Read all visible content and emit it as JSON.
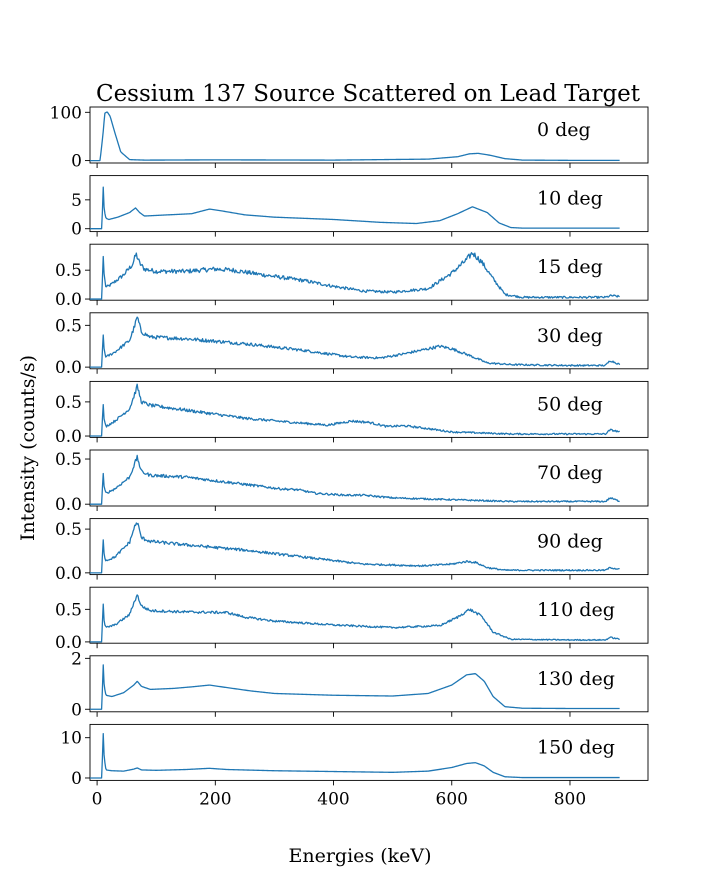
{
  "chart_data": {
    "type": "line",
    "title": "Cessium 137 Source Scattered on Lead Target",
    "xlabel": "Energies (keV)",
    "ylabel": "Intensity (counts/s)",
    "xlim": [
      -12,
      932
    ],
    "x_ticks": [
      "0",
      "200",
      "400",
      "600",
      "800"
    ],
    "x_tick_values": [
      0,
      200,
      400,
      600,
      800
    ],
    "line_color": "#1f77b4",
    "grid": false,
    "legend": "none",
    "panels": [
      {
        "label": "0 deg",
        "ylim": [
          -5,
          111
        ],
        "y_ticks": [
          "0",
          "100"
        ],
        "y_tick_values": [
          0,
          100
        ],
        "x": [
          0,
          5,
          10,
          13,
          17,
          22,
          30,
          40,
          55,
          80,
          200,
          400,
          560,
          610,
          630,
          645,
          665,
          690,
          720,
          800,
          885
        ],
        "values": [
          0,
          0,
          55,
          98,
          101,
          92,
          58,
          18,
          2,
          1,
          1.5,
          1,
          3,
          8,
          14,
          15,
          11,
          4,
          1,
          0.5,
          0.4
        ]
      },
      {
        "label": "10 deg",
        "ylim": [
          -0.5,
          9.2
        ],
        "y_ticks": [
          "0",
          "5"
        ],
        "y_tick_values": [
          0,
          5
        ],
        "x": [
          0,
          8,
          9,
          10,
          12,
          15,
          20,
          35,
          55,
          65,
          72,
          80,
          120,
          160,
          190,
          210,
          250,
          300,
          400,
          480,
          540,
          580,
          610,
          635,
          660,
          680,
          700,
          720,
          800,
          885
        ],
        "values": [
          0,
          0,
          3,
          8.2,
          3.2,
          1.8,
          1.6,
          2,
          2.8,
          3.6,
          2.8,
          2.2,
          2.4,
          2.6,
          3.4,
          3.1,
          2.4,
          2,
          1.6,
          1.1,
          0.9,
          1.4,
          2.6,
          3.8,
          2.8,
          1,
          0.2,
          0.1,
          0.1,
          0.1
        ]
      },
      {
        "label": "15 deg",
        "ylim": [
          -0.02,
          0.95
        ],
        "y_ticks": [
          "0.0",
          "0.5"
        ],
        "y_tick_values": [
          0,
          0.5
        ],
        "noise": 0.045,
        "x": [
          0,
          8,
          9,
          10,
          12,
          15,
          25,
          45,
          60,
          66,
          72,
          80,
          100,
          150,
          200,
          230,
          280,
          350,
          400,
          450,
          500,
          560,
          600,
          625,
          635,
          650,
          670,
          690,
          720,
          800,
          860,
          870,
          885
        ],
        "values": [
          0,
          0,
          0.35,
          0.82,
          0.4,
          0.2,
          0.26,
          0.42,
          0.6,
          0.78,
          0.62,
          0.52,
          0.48,
          0.48,
          0.52,
          0.5,
          0.42,
          0.32,
          0.22,
          0.14,
          0.12,
          0.18,
          0.45,
          0.68,
          0.8,
          0.65,
          0.35,
          0.08,
          0.03,
          0.03,
          0.03,
          0.06,
          0.04
        ]
      },
      {
        "label": "30 deg",
        "ylim": [
          -0.02,
          0.65
        ],
        "y_ticks": [
          "0.0",
          "0.5"
        ],
        "y_tick_values": [
          0,
          0.5
        ],
        "noise": 0.025,
        "x": [
          0,
          8,
          9,
          10,
          12,
          15,
          30,
          55,
          63,
          68,
          75,
          90,
          150,
          250,
          350,
          430,
          480,
          520,
          560,
          580,
          600,
          630,
          660,
          700,
          800,
          860,
          868,
          885
        ],
        "values": [
          0,
          0,
          0.2,
          0.43,
          0.2,
          0.12,
          0.18,
          0.32,
          0.48,
          0.6,
          0.42,
          0.36,
          0.34,
          0.28,
          0.2,
          0.12,
          0.11,
          0.16,
          0.22,
          0.25,
          0.22,
          0.14,
          0.05,
          0.03,
          0.02,
          0.02,
          0.08,
          0.03
        ]
      },
      {
        "label": "50 deg",
        "ylim": [
          -0.02,
          0.8
        ],
        "y_ticks": [
          "0.0",
          "0.5"
        ],
        "y_tick_values": [
          0,
          0.5
        ],
        "noise": 0.028,
        "x": [
          0,
          8,
          9,
          10,
          12,
          15,
          30,
          55,
          63,
          68,
          75,
          90,
          150,
          250,
          330,
          390,
          430,
          460,
          490,
          520,
          550,
          600,
          700,
          800,
          860,
          868,
          885
        ],
        "values": [
          0,
          0,
          0.25,
          0.52,
          0.22,
          0.14,
          0.22,
          0.4,
          0.6,
          0.73,
          0.5,
          0.45,
          0.38,
          0.26,
          0.2,
          0.16,
          0.22,
          0.2,
          0.14,
          0.15,
          0.12,
          0.06,
          0.03,
          0.03,
          0.03,
          0.09,
          0.06
        ]
      },
      {
        "label": "70 deg",
        "ylim": [
          -0.02,
          0.6
        ],
        "y_ticks": [
          "0.0",
          "0.5"
        ],
        "y_tick_values": [
          0,
          0.5
        ],
        "noise": 0.02,
        "x": [
          0,
          8,
          9,
          10,
          12,
          15,
          30,
          55,
          63,
          68,
          75,
          90,
          150,
          250,
          310,
          340,
          370,
          420,
          450,
          500,
          600,
          700,
          800,
          860,
          868,
          885
        ],
        "values": [
          0,
          0,
          0.18,
          0.38,
          0.18,
          0.12,
          0.17,
          0.3,
          0.44,
          0.52,
          0.36,
          0.32,
          0.3,
          0.22,
          0.17,
          0.16,
          0.12,
          0.1,
          0.1,
          0.07,
          0.05,
          0.03,
          0.03,
          0.03,
          0.07,
          0.03
        ]
      },
      {
        "label": "90 deg",
        "ylim": [
          -0.02,
          0.62
        ],
        "y_ticks": [
          "0.0",
          "0.5"
        ],
        "y_tick_values": [
          0,
          0.5
        ],
        "noise": 0.02,
        "x": [
          0,
          8,
          9,
          10,
          12,
          15,
          30,
          55,
          63,
          68,
          75,
          90,
          150,
          250,
          350,
          450,
          550,
          600,
          625,
          640,
          660,
          690,
          750,
          860,
          868,
          885
        ],
        "values": [
          0,
          0,
          0.2,
          0.42,
          0.2,
          0.14,
          0.18,
          0.35,
          0.52,
          0.58,
          0.4,
          0.36,
          0.32,
          0.26,
          0.18,
          0.1,
          0.08,
          0.1,
          0.13,
          0.12,
          0.06,
          0.03,
          0.03,
          0.03,
          0.06,
          0.04
        ]
      },
      {
        "label": "110 deg",
        "ylim": [
          -0.02,
          0.84
        ],
        "y_ticks": [
          "0.0",
          "0.5"
        ],
        "y_tick_values": [
          0,
          0.5
        ],
        "noise": 0.022,
        "x": [
          0,
          8,
          9,
          10,
          12,
          15,
          30,
          55,
          63,
          68,
          75,
          90,
          150,
          220,
          250,
          300,
          400,
          500,
          580,
          610,
          630,
          650,
          670,
          700,
          800,
          860,
          868,
          885
        ],
        "values": [
          0,
          0,
          0.3,
          0.65,
          0.3,
          0.22,
          0.26,
          0.42,
          0.62,
          0.72,
          0.55,
          0.48,
          0.46,
          0.45,
          0.38,
          0.32,
          0.26,
          0.22,
          0.25,
          0.38,
          0.5,
          0.4,
          0.15,
          0.04,
          0.03,
          0.03,
          0.07,
          0.04
        ]
      },
      {
        "label": "130 deg",
        "ylim": [
          -0.1,
          2.1
        ],
        "y_ticks": [
          "0",
          "2"
        ],
        "y_tick_values": [
          0,
          2
        ],
        "x": [
          0,
          8,
          9,
          10,
          12,
          15,
          25,
          45,
          62,
          68,
          75,
          90,
          130,
          160,
          190,
          220,
          260,
          300,
          400,
          500,
          560,
          600,
          625,
          640,
          655,
          670,
          690,
          720,
          800,
          885
        ],
        "values": [
          0,
          0,
          0.8,
          1.95,
          0.9,
          0.55,
          0.5,
          0.65,
          0.95,
          1.1,
          0.9,
          0.78,
          0.82,
          0.88,
          0.95,
          0.85,
          0.72,
          0.62,
          0.55,
          0.52,
          0.62,
          0.95,
          1.35,
          1.4,
          1.1,
          0.5,
          0.1,
          0.04,
          0.03,
          0.03
        ]
      },
      {
        "label": "150 deg",
        "ylim": [
          -0.6,
          13.3
        ],
        "y_ticks": [
          "0",
          "10"
        ],
        "y_tick_values": [
          0,
          10
        ],
        "x": [
          0,
          8,
          9,
          10,
          12,
          15,
          25,
          45,
          62,
          68,
          75,
          100,
          150,
          190,
          220,
          300,
          400,
          500,
          560,
          600,
          625,
          640,
          655,
          670,
          690,
          720,
          800,
          885
        ],
        "values": [
          0,
          0,
          5,
          12.5,
          5,
          2,
          1.8,
          1.7,
          2.2,
          2.5,
          2.0,
          1.9,
          2.1,
          2.4,
          2.1,
          1.8,
          1.6,
          1.4,
          1.7,
          2.6,
          3.6,
          3.8,
          3.0,
          1.4,
          0.3,
          0.1,
          0.1,
          0.1
        ]
      }
    ]
  }
}
